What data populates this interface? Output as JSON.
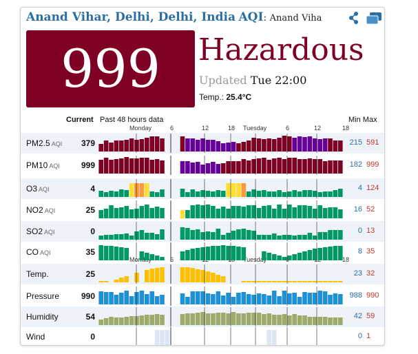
{
  "header": {
    "city": "Anand Vihar, Delhi, Delhi, India",
    "aqi_word": "AQI",
    "colon": ":",
    "station": "Anand Vihar, Delh"
  },
  "icons": {
    "share": "share-icon",
    "window": "window-icon"
  },
  "main": {
    "aqi_value": "999",
    "level": "Hazardous",
    "updated_label": "Updated",
    "updated_value": "Tue 22:00",
    "temp_label": "Temp.:",
    "temp_value": "25.4°C"
  },
  "table": {
    "current_header": "Current",
    "past_header": "Past 48 hours data",
    "min_header": "Min",
    "max_header": "Max",
    "axis_labels": [
      "Monday",
      "6",
      "12",
      "18",
      "Tuesday",
      "6",
      "12",
      "18"
    ],
    "rows": [
      {
        "name": "PM2.5",
        "sub": "AQI",
        "current": "379",
        "min": "215",
        "max": "591"
      },
      {
        "name": "PM10",
        "sub": "AQI",
        "current": "999",
        "min": "182",
        "max": "999"
      },
      {
        "name": "O3",
        "sub": "AQI",
        "current": "4",
        "min": "4",
        "max": "124"
      },
      {
        "name": "NO2",
        "sub": "AQI",
        "current": "25",
        "min": "16",
        "max": "52"
      },
      {
        "name": "SO2",
        "sub": "AQI",
        "current": "0",
        "min": "0",
        "max": "13"
      },
      {
        "name": "CO",
        "sub": "AQI",
        "current": "35",
        "min": "8",
        "max": "35"
      },
      {
        "name": "Temp.",
        "sub": "",
        "current": "25",
        "min": "23",
        "max": "32"
      },
      {
        "name": "Pressure",
        "sub": "",
        "current": "990",
        "min": "988",
        "max": "990"
      },
      {
        "name": "Humidity",
        "sub": "",
        "current": "54",
        "min": "42",
        "max": "59"
      },
      {
        "name": "Wind",
        "sub": "",
        "current": "0",
        "min": "0",
        "max": "1"
      }
    ]
  },
  "colors": {
    "hazardous": "#7e0023",
    "very_unhealthy": "#660099",
    "good": "#009966",
    "moderate": "#ffde33",
    "usg": "#ff9933",
    "temp": "#ffc000",
    "pressure": "#1e90d6",
    "humidity": "#9aab6a",
    "wind": "#dde6f7",
    "link": "#2a6ea5"
  }
}
